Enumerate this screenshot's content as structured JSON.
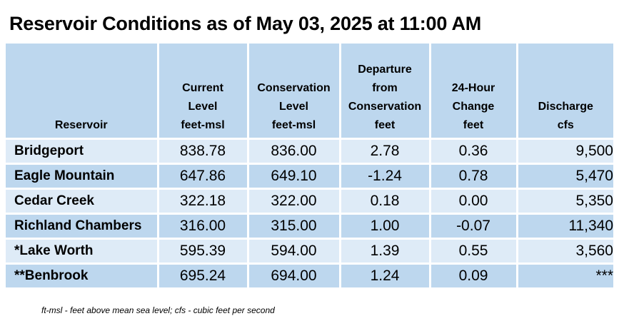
{
  "title": "Reservoir Conditions as of May 03, 2025 at 11:00 AM",
  "columns": [
    {
      "lines": [
        "Reservoir"
      ]
    },
    {
      "lines": [
        "Current",
        "Level",
        "feet-msl"
      ]
    },
    {
      "lines": [
        "Conservation",
        "Level",
        "feet-msl"
      ]
    },
    {
      "lines": [
        "Departure",
        "from",
        "Conservation",
        "feet"
      ]
    },
    {
      "lines": [
        "24-Hour",
        "Change",
        "feet"
      ]
    },
    {
      "lines": [
        "Discharge",
        "cfs"
      ]
    }
  ],
  "rows": [
    {
      "reservoir": "Bridgeport",
      "current": "838.78",
      "conservation": "836.00",
      "departure": "2.78",
      "change": "0.36",
      "discharge": "9,500"
    },
    {
      "reservoir": "Eagle Mountain",
      "current": "647.86",
      "conservation": "649.10",
      "departure": "-1.24",
      "change": "0.78",
      "discharge": "5,470"
    },
    {
      "reservoir": "Cedar Creek",
      "current": "322.18",
      "conservation": "322.00",
      "departure": "0.18",
      "change": "0.00",
      "discharge": "5,350"
    },
    {
      "reservoir": "Richland Chambers",
      "current": "316.00",
      "conservation": "315.00",
      "departure": "1.00",
      "change": "-0.07",
      "discharge": "11,340"
    },
    {
      "reservoir": "*Lake Worth",
      "current": "595.39",
      "conservation": "594.00",
      "departure": "1.39",
      "change": "0.55",
      "discharge": "3,560"
    },
    {
      "reservoir": "**Benbrook",
      "current": "695.24",
      "conservation": "694.00",
      "departure": "1.24",
      "change": "0.09",
      "discharge": "***"
    }
  ],
  "footnote": "ft-msl - feet above mean sea level; cfs - cubic feet per second",
  "colors": {
    "header_bg": "#bdd7ee",
    "row_light": "#deebf7",
    "row_dark": "#bdd7ee"
  }
}
